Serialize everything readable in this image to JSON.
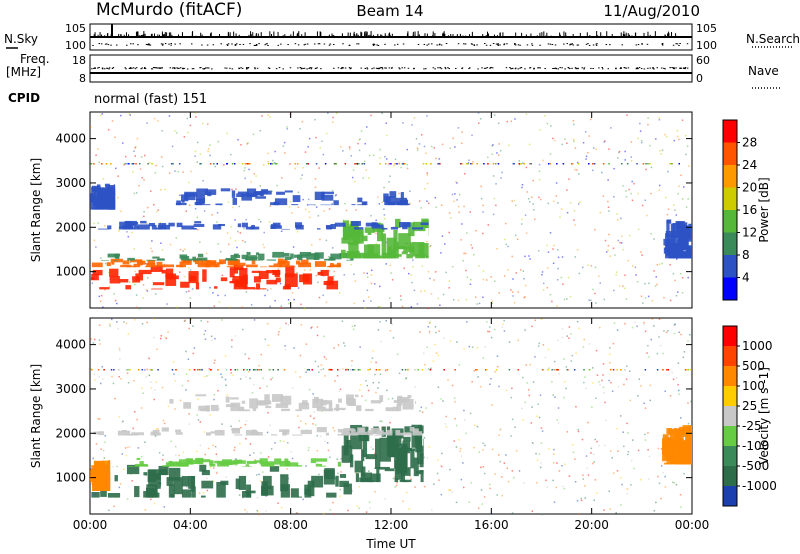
{
  "header": {
    "station": "McMurdo (fitACF)",
    "beam": "Beam 14",
    "date": "11/Aug/2010"
  },
  "left_labels": {
    "nsky": "N.Sky",
    "freq": "Freq.",
    "freq_unit": "[MHz]",
    "cpid": "CPID"
  },
  "right_labels": {
    "nsearch": "N.Search",
    "nave": "Nave"
  },
  "cpid_text": "normal (fast) 151",
  "chart_data": [
    {
      "type": "line",
      "name": "noise-panel",
      "ylabel": "N.Sky",
      "yticks_left": [
        "10^5",
        "10^0"
      ],
      "yticks_right": [
        "10^5",
        "10^0"
      ],
      "right_label": "N.Search",
      "series": [
        {
          "name": "N.Sky",
          "style": "solid"
        },
        {
          "name": "N.Search",
          "style": "dotted"
        }
      ]
    },
    {
      "type": "line",
      "name": "freq-panel",
      "ylabel": "Freq. [MHz]",
      "yticks_left": [
        "18",
        "8"
      ],
      "yticks_right": [
        "60",
        "0"
      ],
      "right_label": "Nave",
      "series": [
        {
          "name": "Freq",
          "style": "solid",
          "values_const": 12.0
        },
        {
          "name": "Nave",
          "style": "dotted",
          "values_const": 22
        }
      ]
    },
    {
      "type": "heatmap",
      "name": "power-panel",
      "ylabel": "Slant Range [km]",
      "yticks": [
        "1000",
        "2000",
        "3000",
        "4000"
      ],
      "ylim": [
        180,
        4600
      ],
      "xlim": [
        0,
        24
      ],
      "colorbar": {
        "label": "Power [dB]",
        "ticks": [
          "4",
          "8",
          "12",
          "16",
          "20",
          "24",
          "28"
        ],
        "colors": [
          "#0000ff",
          "#2c52c4",
          "#3a8a5a",
          "#55b838",
          "#cccc00",
          "#ff9900",
          "#ff5500",
          "#ff0000"
        ]
      }
    },
    {
      "type": "heatmap",
      "name": "velocity-panel",
      "ylabel": "Slant Range [km]",
      "yticks": [
        "1000",
        "2000",
        "3000",
        "4000"
      ],
      "ylim": [
        180,
        4600
      ],
      "xlim": [
        0,
        24
      ],
      "xticks": [
        "00:00",
        "04:00",
        "08:00",
        "12:00",
        "16:00",
        "20:00",
        "00:00"
      ],
      "xlabel": "Time UT",
      "colorbar": {
        "label": "Velocity [m s^-1]",
        "ticks": [
          "1000",
          "500",
          "100",
          "25",
          "-25",
          "-100",
          "-500",
          "-1000"
        ],
        "colors": [
          "#1c3fb0",
          "#2e6d4a",
          "#3a8a5a",
          "#66cc44",
          "#c8c8c8",
          "#ffcc00",
          "#ff8800",
          "#ff4400",
          "#ff0000"
        ]
      }
    }
  ],
  "data_regions": {
    "power": [
      {
        "t0": 0.0,
        "t1": 10.0,
        "r0": 600,
        "r1": 1150,
        "color": "#ff2200"
      },
      {
        "t0": 0.0,
        "t1": 10.0,
        "r0": 1100,
        "r1": 1300,
        "color": "#ff6600"
      },
      {
        "t0": 0.0,
        "t1": 10.5,
        "r0": 1250,
        "r1": 1450,
        "color": "#3a8a5a"
      },
      {
        "t0": 10.0,
        "t1": 13.5,
        "r0": 1300,
        "r1": 2200,
        "color": "#55b838"
      },
      {
        "t0": 0.0,
        "t1": 13.5,
        "r0": 1950,
        "r1": 2150,
        "color": "#2c52c4"
      },
      {
        "t0": 0.0,
        "t1": 1.0,
        "r0": 2400,
        "r1": 3000,
        "color": "#2c52c4"
      },
      {
        "t0": 3.0,
        "t1": 13.0,
        "r0": 2500,
        "r1": 2900,
        "color": "#2c52c4"
      },
      {
        "t0": 22.8,
        "t1": 24.0,
        "r0": 1300,
        "r1": 2200,
        "color": "#2c52c4"
      }
    ],
    "velocity": [
      {
        "t0": 0.0,
        "t1": 10.5,
        "r0": 550,
        "r1": 1300,
        "color": "#2e6d4a"
      },
      {
        "t0": 0.0,
        "t1": 0.8,
        "r0": 700,
        "r1": 1400,
        "color": "#ff8800"
      },
      {
        "t0": 1.5,
        "t1": 10.0,
        "r0": 1250,
        "r1": 1450,
        "color": "#66cc44"
      },
      {
        "t0": 10.0,
        "t1": 13.3,
        "r0": 900,
        "r1": 2200,
        "color": "#2e6d4a"
      },
      {
        "t0": 0.0,
        "t1": 13.5,
        "r0": 1950,
        "r1": 2150,
        "color": "#c8c8c8"
      },
      {
        "t0": 3.0,
        "t1": 13.0,
        "r0": 2500,
        "r1": 2900,
        "color": "#c8c8c8"
      },
      {
        "t0": 22.8,
        "t1": 24.0,
        "r0": 1300,
        "r1": 2200,
        "color": "#ff8800"
      }
    ]
  }
}
